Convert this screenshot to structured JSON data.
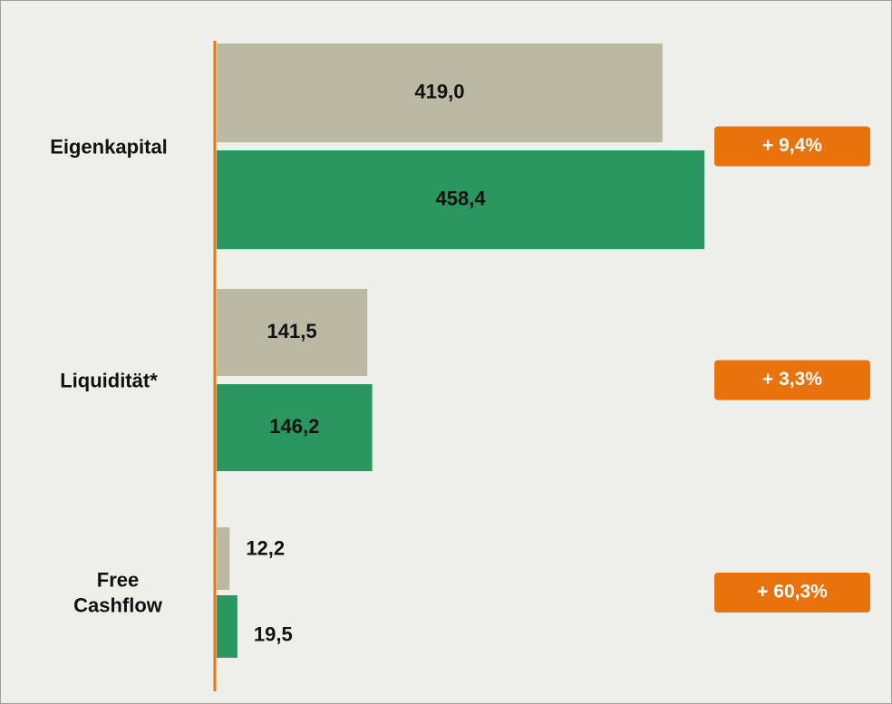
{
  "chart_data": {
    "type": "bar",
    "orientation": "horizontal",
    "categories": [
      "Eigenkapital",
      "Liquidität*",
      "Free Cashflow"
    ],
    "series": [
      {
        "color": "#bab9a3",
        "values": [
          419.0,
          141.5,
          12.2
        ],
        "value_labels": [
          "419,0",
          "141,5",
          "12,2"
        ]
      },
      {
        "color": "#2a9660",
        "values": [
          458.4,
          146.2,
          19.5
        ],
        "value_labels": [
          "458,4",
          "146,2",
          "19,5"
        ]
      }
    ],
    "annotations": [
      "+ 9,4%",
      "+ 3,3%",
      "+ 60,3%"
    ],
    "annotation_color": "#e8720c",
    "axis_color": "#e07b16",
    "xlim": [
      0,
      460
    ]
  }
}
